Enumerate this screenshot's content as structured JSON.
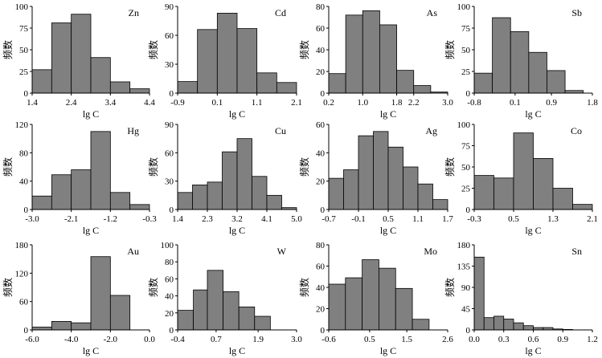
{
  "chart_data": [
    {
      "type": "bar",
      "element": "Zn",
      "xlabel": "lg C",
      "ylabel": "频数",
      "xlim": [
        1.4,
        4.4
      ],
      "x_ticks": [
        "1.4",
        "2.4",
        "3.4",
        "4.4"
      ],
      "ylim": [
        0,
        100
      ],
      "y_ticks": [
        "0",
        "25",
        "50",
        "75",
        "100"
      ],
      "bin_edges": [
        1.4,
        1.9,
        2.4,
        2.9,
        3.4,
        3.9,
        4.4
      ],
      "values": [
        27,
        81,
        91,
        41,
        13,
        5
      ]
    },
    {
      "type": "bar",
      "element": "Cd",
      "xlabel": "lg C",
      "ylabel": "频数",
      "xlim": [
        -0.9,
        2.1
      ],
      "x_ticks": [
        "-0.9",
        "0.1",
        "1.1",
        "2.1"
      ],
      "ylim": [
        0,
        90
      ],
      "y_ticks": [
        "0",
        "30",
        "60",
        "90"
      ],
      "bin_edges": [
        -0.9,
        -0.4,
        0.1,
        0.6,
        1.1,
        1.6,
        2.1
      ],
      "values": [
        12,
        66,
        83,
        67,
        21,
        11
      ]
    },
    {
      "type": "bar",
      "element": "As",
      "xlabel": "lg C",
      "ylabel": "频数",
      "xlim": [
        0.2,
        3.0
      ],
      "x_ticks": [
        "0.2",
        "1.0",
        "1.8",
        "2.2",
        "3.0"
      ],
      "ylim": [
        0,
        80
      ],
      "y_ticks": [
        "0",
        "20",
        "40",
        "60",
        "80"
      ],
      "bin_edges": [
        0.2,
        0.6,
        1.0,
        1.4,
        1.8,
        2.2,
        2.6,
        3.0
      ],
      "values": [
        18,
        72,
        76,
        63,
        21,
        7,
        1
      ]
    },
    {
      "type": "bar",
      "element": "Sb",
      "xlabel": "lg C",
      "ylabel": "频数",
      "xlim": [
        -0.8,
        1.8
      ],
      "x_ticks": [
        "-0.8",
        "0.1",
        "0.9",
        "1.8"
      ],
      "ylim": [
        0,
        100
      ],
      "y_ticks": [
        "0",
        "25",
        "50",
        "75",
        "100"
      ],
      "bin_edges": [
        -0.8,
        -0.4,
        0.0,
        0.4,
        0.8,
        1.2,
        1.6
      ],
      "values": [
        23,
        87,
        71,
        47,
        26,
        3
      ]
    },
    {
      "type": "bar",
      "element": "Hg",
      "xlabel": "lg C",
      "ylabel": "频数",
      "xlim": [
        -3.0,
        -0.3
      ],
      "x_ticks": [
        "-3.0",
        "-2.1",
        "-1.2",
        "-0.3"
      ],
      "ylim": [
        0,
        120
      ],
      "y_ticks": [
        "0",
        "40",
        "80",
        "120"
      ],
      "bin_edges": [
        -3.0,
        -2.55,
        -2.1,
        -1.65,
        -1.2,
        -0.75,
        -0.3
      ],
      "values": [
        19,
        49,
        56,
        110,
        24,
        7
      ]
    },
    {
      "type": "bar",
      "element": "Cu",
      "xlabel": "lg C",
      "ylabel": "频数",
      "xlim": [
        1.4,
        5.0
      ],
      "x_ticks": [
        "1.4",
        "2.3",
        "3.2",
        "4.1",
        "5.0"
      ],
      "ylim": [
        0,
        90
      ],
      "y_ticks": [
        "0",
        "30",
        "60",
        "90"
      ],
      "bin_edges": [
        1.4,
        1.85,
        2.3,
        2.75,
        3.2,
        3.65,
        4.1,
        4.55,
        5.0
      ],
      "values": [
        18,
        26,
        29,
        61,
        75,
        35,
        15,
        2
      ]
    },
    {
      "type": "bar",
      "element": "Ag",
      "xlabel": "lg C",
      "ylabel": "频数",
      "xlim": [
        -0.7,
        1.7
      ],
      "x_ticks": [
        "-0.7",
        "-0.1",
        "0.5",
        "1.1",
        "1.7"
      ],
      "ylim": [
        0,
        60
      ],
      "y_ticks": [
        "0",
        "20",
        "40",
        "60"
      ],
      "bin_edges": [
        -0.7,
        -0.4,
        -0.1,
        0.2,
        0.5,
        0.8,
        1.1,
        1.4,
        1.7
      ],
      "values": [
        22,
        28,
        52,
        55,
        44,
        30,
        18,
        7
      ]
    },
    {
      "type": "bar",
      "element": "Co",
      "xlabel": "lg C",
      "ylabel": "频数",
      "xlim": [
        -0.3,
        2.1
      ],
      "x_ticks": [
        "-0.3",
        "0.5",
        "1.3",
        "2.1"
      ],
      "ylim": [
        0,
        100
      ],
      "y_ticks": [
        "0",
        "25",
        "50",
        "75",
        "100"
      ],
      "bin_edges": [
        -0.3,
        0.1,
        0.5,
        0.9,
        1.3,
        1.7,
        2.1
      ],
      "values": [
        40,
        37,
        90,
        60,
        25,
        6
      ]
    },
    {
      "type": "bar",
      "element": "Au",
      "xlabel": "lg C",
      "ylabel": "频数",
      "xlim": [
        -6.0,
        0.0
      ],
      "x_ticks": [
        "-6.0",
        "-4.0",
        "-2.0",
        "0.0"
      ],
      "ylim": [
        0,
        180
      ],
      "y_ticks": [
        "0",
        "60",
        "120",
        "180"
      ],
      "bin_edges": [
        -6.0,
        -5.0,
        -4.0,
        -3.0,
        -2.0,
        -1.0
      ],
      "values": [
        6,
        18,
        15,
        155,
        73
      ]
    },
    {
      "type": "bar",
      "element": "W",
      "xlabel": "lg C",
      "ylabel": "频数",
      "xlim": [
        -0.4,
        3.0
      ],
      "x_ticks": [
        "-0.4",
        "0.7",
        "1.9",
        "3.0"
      ],
      "ylim": [
        0,
        100
      ],
      "y_ticks": [
        "0",
        "20",
        "40",
        "60",
        "80",
        "100"
      ],
      "bin_edges": [
        -0.4,
        0.05,
        0.45,
        0.9,
        1.35,
        1.8,
        2.25
      ],
      "values": [
        23,
        47,
        70,
        45,
        27,
        16
      ]
    },
    {
      "type": "bar",
      "element": "Mo",
      "xlabel": "lg C",
      "ylabel": "频数",
      "xlim": [
        -0.6,
        2.6
      ],
      "x_ticks": [
        "-0.6",
        "0.5",
        "1.5",
        "2.6"
      ],
      "ylim": [
        0,
        80
      ],
      "y_ticks": [
        "0",
        "20",
        "40",
        "60",
        "80"
      ],
      "bin_edges": [
        -0.6,
        -0.15,
        0.3,
        0.75,
        1.2,
        1.65,
        2.1
      ],
      "values": [
        43,
        49,
        66,
        58,
        39,
        10
      ]
    },
    {
      "type": "bar",
      "element": "Sn",
      "xlabel": "lg C",
      "ylabel": "频数",
      "xlim": [
        0.0,
        1.2
      ],
      "x_ticks": [
        "0.0",
        "0.3",
        "0.6",
        "0.9",
        "1.2"
      ],
      "ylim": [
        0,
        180
      ],
      "y_ticks": [
        "0",
        "45",
        "90",
        "135",
        "180"
      ],
      "bin_edges": [
        0.0,
        0.1,
        0.2,
        0.3,
        0.4,
        0.5,
        0.6,
        0.7,
        0.8,
        0.9,
        1.0,
        1.1,
        1.2
      ],
      "values": [
        154,
        26,
        29,
        23,
        15,
        9,
        5,
        5,
        2,
        1,
        0,
        0
      ]
    }
  ],
  "colors": {
    "bar_fill": "#808080",
    "bar_stroke": "#000000",
    "axis": "#000000"
  }
}
